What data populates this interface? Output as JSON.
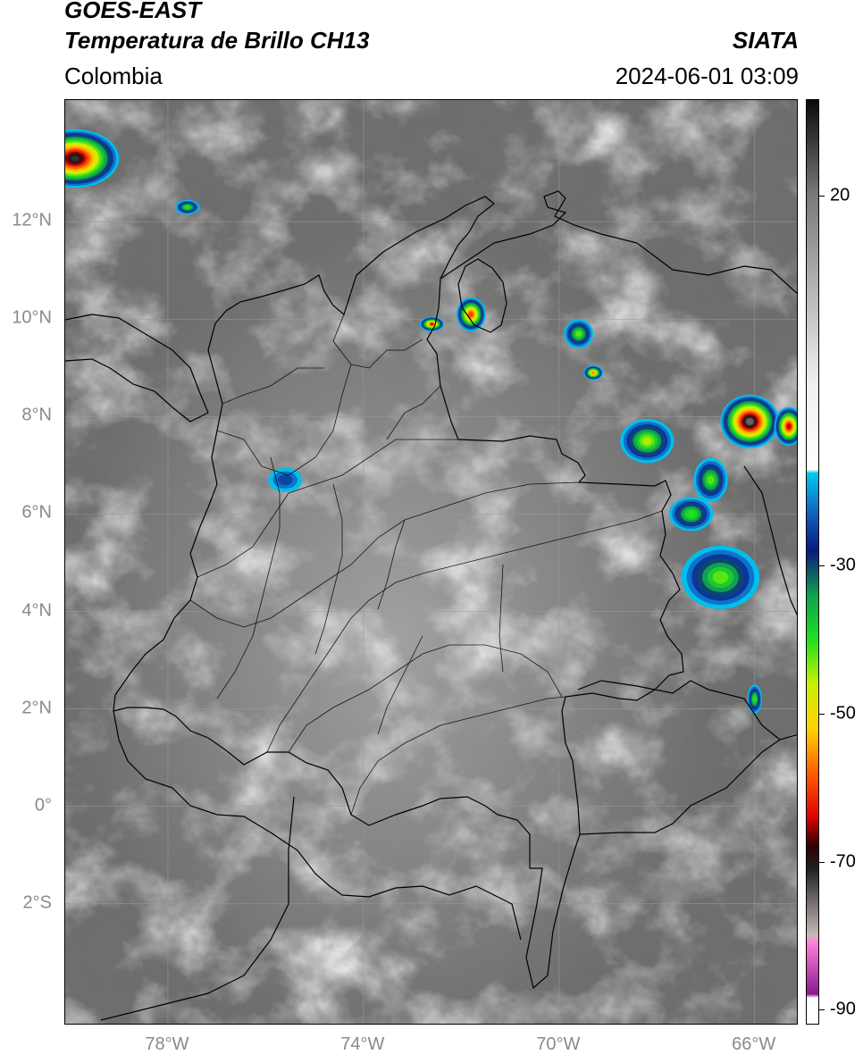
{
  "header": {
    "satellite": "GOES-EAST",
    "product": "Temperatura de Brillo CH13",
    "region": "Colombia",
    "brand": "SIATA",
    "datetime": "2024-06-01 03:09"
  },
  "map": {
    "lat_range": [
      -4.5,
      14.5
    ],
    "lon_range": [
      -80.1,
      -65.1
    ],
    "lat_ticks": [
      {
        "value": 12,
        "label": "12°N"
      },
      {
        "value": 10,
        "label": "10°N"
      },
      {
        "value": 8,
        "label": "8°N"
      },
      {
        "value": 6,
        "label": "6°N"
      },
      {
        "value": 4,
        "label": "4°N"
      },
      {
        "value": 2,
        "label": "2°N"
      },
      {
        "value": 0,
        "label": "0°"
      },
      {
        "value": -2,
        "label": "2°S"
      }
    ],
    "lon_ticks": [
      {
        "value": -78,
        "label": "78°W"
      },
      {
        "value": -74,
        "label": "74°W"
      },
      {
        "value": -70,
        "label": "70°W"
      },
      {
        "value": -66,
        "label": "66°W"
      }
    ],
    "gridlines": true,
    "storm_cells": [
      {
        "lon": -79.9,
        "lat": 13.3,
        "rx": 0.9,
        "ry": 0.6,
        "min_temp": -72
      },
      {
        "lon": -77.6,
        "lat": 12.3,
        "rx": 0.25,
        "ry": 0.15,
        "min_temp": -40
      },
      {
        "lon": -72.6,
        "lat": 9.9,
        "rx": 0.25,
        "ry": 0.15,
        "min_temp": -62
      },
      {
        "lon": -71.8,
        "lat": 10.1,
        "rx": 0.3,
        "ry": 0.35,
        "min_temp": -60
      },
      {
        "lon": -69.6,
        "lat": 9.7,
        "rx": 0.3,
        "ry": 0.3,
        "min_temp": -42
      },
      {
        "lon": -69.3,
        "lat": 8.9,
        "rx": 0.2,
        "ry": 0.15,
        "min_temp": -55
      },
      {
        "lon": -68.2,
        "lat": 7.5,
        "rx": 0.55,
        "ry": 0.45,
        "min_temp": -45
      },
      {
        "lon": -66.1,
        "lat": 7.9,
        "rx": 0.6,
        "ry": 0.55,
        "min_temp": -75
      },
      {
        "lon": -65.3,
        "lat": 7.8,
        "rx": 0.3,
        "ry": 0.4,
        "min_temp": -65
      },
      {
        "lon": -66.9,
        "lat": 6.7,
        "rx": 0.35,
        "ry": 0.45,
        "min_temp": -42
      },
      {
        "lon": -67.3,
        "lat": 6.0,
        "rx": 0.45,
        "ry": 0.35,
        "min_temp": -40
      },
      {
        "lon": -66.7,
        "lat": 4.7,
        "rx": 0.8,
        "ry": 0.65,
        "min_temp": -42
      },
      {
        "lon": -75.6,
        "lat": 6.7,
        "rx": 0.35,
        "ry": 0.25,
        "min_temp": -25
      },
      {
        "lon": -66.0,
        "lat": 2.2,
        "rx": 0.15,
        "ry": 0.3,
        "min_temp": -40
      }
    ]
  },
  "colorbar": {
    "range": [
      -92,
      33
    ],
    "ticks": [
      {
        "value": 20,
        "label": "20"
      },
      {
        "value": -30,
        "label": "-30"
      },
      {
        "value": -50,
        "label": "-50"
      },
      {
        "value": -70,
        "label": "-70"
      },
      {
        "value": -90,
        "label": "-90"
      }
    ],
    "stops": [
      {
        "value": 33,
        "color": "#0a0a0a"
      },
      {
        "value": 20,
        "color": "#7a7a7a"
      },
      {
        "value": -5,
        "color": "#eeeeee"
      },
      {
        "value": -17,
        "color": "#ffffff"
      },
      {
        "value": -17.5,
        "color": "#00c8f0"
      },
      {
        "value": -23,
        "color": "#1060c0"
      },
      {
        "value": -28,
        "color": "#0a1a80"
      },
      {
        "value": -34,
        "color": "#10a050"
      },
      {
        "value": -40,
        "color": "#20e020"
      },
      {
        "value": -46,
        "color": "#c8f000"
      },
      {
        "value": -52,
        "color": "#ffd400"
      },
      {
        "value": -58,
        "color": "#ff6000"
      },
      {
        "value": -64,
        "color": "#e00000"
      },
      {
        "value": -68,
        "color": "#300000"
      },
      {
        "value": -71,
        "color": "#202020"
      },
      {
        "value": -80,
        "color": "#c8b8b8"
      },
      {
        "value": -81,
        "color": "#ff80d8"
      },
      {
        "value": -88,
        "color": "#8a1a90"
      },
      {
        "value": -88.5,
        "color": "#ffffff"
      },
      {
        "value": -92,
        "color": "#ffffff"
      }
    ]
  }
}
